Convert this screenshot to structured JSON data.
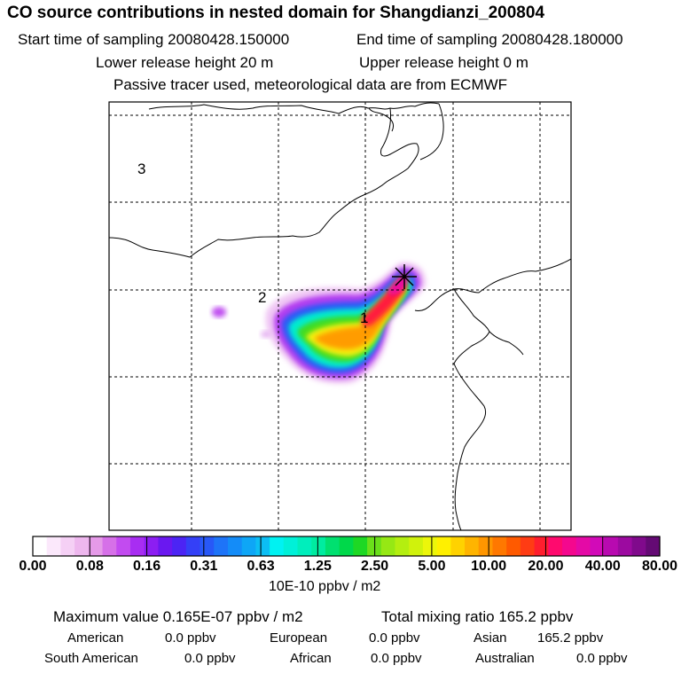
{
  "header": {
    "title": "CO  source contributions in nested domain for Shangdianzi_200804",
    "start_time": "Start time of sampling 20080428.150000",
    "end_time": "End time of sampling 20080428.180000",
    "lower_height": "Lower release height   20 m",
    "upper_height": "Upper release height    0 m",
    "tracer_note": "Passive tracer used, meteorological data are from ECMWF"
  },
  "map": {
    "region_labels": [
      "3",
      "2",
      "1"
    ],
    "receptor_marker": "star-icon"
  },
  "colorbar": {
    "tick_labels": [
      "0.00",
      "0.08",
      "0.16",
      "0.31",
      "0.63",
      "1.25",
      "2.50",
      "5.00",
      "10.00",
      "20.00",
      "40.00",
      "80.00"
    ],
    "colors": [
      "#ffffff",
      "#fbe8fb",
      "#f5d0f5",
      "#eeb7ee",
      "#e59ae8",
      "#d670e8",
      "#c24bf0",
      "#a82df2",
      "#8c1ef2",
      "#6a18f0",
      "#4c24f4",
      "#3440f7",
      "#2858f7",
      "#1e74f8",
      "#148cf8",
      "#0ea6f6",
      "#0cbef4",
      "#00f2f2",
      "#00f0d8",
      "#00eebc",
      "#00eca0",
      "#00e070",
      "#00d84a",
      "#1ed824",
      "#6ae01a",
      "#96e814",
      "#b4ee10",
      "#d0f20c",
      "#ecf60a",
      "#fff000",
      "#ffd200",
      "#ffb400",
      "#ff9600",
      "#ff7800",
      "#ff5a00",
      "#ff3c14",
      "#ff1e2e",
      "#ff0a6e",
      "#f4088e",
      "#e40aa6",
      "#d20ab8",
      "#b80ab0",
      "#9c0aa0",
      "#800a8c",
      "#640a74"
    ],
    "units": "10E-10 ppbv / m2"
  },
  "stats": {
    "max_value": "Maximum value  0.165E-07 ppbv / m2",
    "total_mixing": "Total mixing ratio      165.2 ppbv",
    "regions": [
      {
        "name": "American",
        "value": "0.0 ppbv"
      },
      {
        "name": "European",
        "value": "0.0 ppbv"
      },
      {
        "name": "Asian",
        "value": "165.2 ppbv"
      },
      {
        "name": "South American",
        "value": "0.0 ppbv"
      },
      {
        "name": "African",
        "value": "0.0 ppbv"
      },
      {
        "name": "Australian",
        "value": "0.0 ppbv"
      }
    ]
  }
}
